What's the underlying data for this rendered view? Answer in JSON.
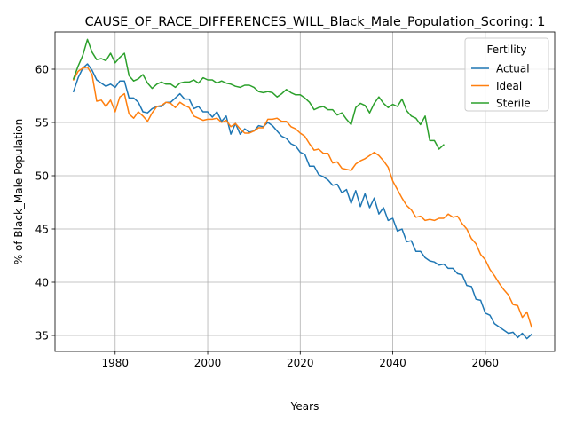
{
  "chart_data": {
    "type": "line",
    "title": "CAUSE_OF_RACE_DIFFERENCES_WILL_Black_Male_Population_Scoring: 1",
    "xlabel": "Years",
    "ylabel": "% of Black_Male Population",
    "xlim": [
      1967,
      2075
    ],
    "ylim": [
      33.5,
      63.5
    ],
    "xticks": [
      1980,
      2000,
      2020,
      2040,
      2060
    ],
    "yticks": [
      35,
      40,
      45,
      50,
      55,
      60
    ],
    "grid": true,
    "legend": {
      "title": "Fertility",
      "placement": "top-right"
    },
    "series": [
      {
        "name": "Actual",
        "color": "#1f77b4",
        "x": [
          1971,
          1972,
          1973,
          1974,
          1975,
          1976,
          1977,
          1978,
          1979,
          1980,
          1981,
          1982,
          1983,
          1984,
          1985,
          1986,
          1987,
          1988,
          1989,
          1990,
          1991,
          1992,
          1993,
          1994,
          1995,
          1996,
          1997,
          1998,
          1999,
          2000,
          2001,
          2002,
          2003,
          2004,
          2005,
          2006,
          2007,
          2008,
          2009,
          2010,
          2011,
          2012,
          2013,
          2014,
          2015,
          2016,
          2017,
          2018,
          2019,
          2020,
          2021,
          2022,
          2023,
          2024,
          2025,
          2026,
          2027,
          2028,
          2029,
          2030,
          2031,
          2032,
          2033,
          2034,
          2035,
          2036,
          2037,
          2038,
          2039,
          2040,
          2041,
          2042,
          2043,
          2044,
          2045,
          2046,
          2047,
          2048,
          2049,
          2050,
          2051,
          2052,
          2053,
          2054,
          2055,
          2056,
          2057,
          2058,
          2059,
          2060,
          2061,
          2062,
          2063,
          2064,
          2065,
          2066,
          2067,
          2068,
          2069,
          2070
        ],
        "y": [
          57.9,
          59.2,
          60.1,
          60.5,
          59.9,
          59.0,
          58.7,
          58.4,
          58.6,
          58.3,
          58.9,
          58.9,
          57.3,
          57.3,
          56.9,
          56.0,
          55.9,
          56.3,
          56.5,
          56.5,
          56.9,
          56.9,
          57.3,
          57.7,
          57.2,
          57.2,
          56.3,
          56.5,
          56.0,
          56.0,
          55.5,
          56.0,
          55.1,
          55.6,
          53.9,
          54.9,
          53.9,
          54.4,
          54.1,
          54.2,
          54.7,
          54.6,
          55.0,
          54.7,
          54.2,
          53.7,
          53.5,
          53.0,
          52.8,
          52.2,
          52.0,
          50.9,
          50.9,
          50.1,
          49.9,
          49.6,
          49.1,
          49.2,
          48.4,
          48.7,
          47.4,
          48.6,
          47.1,
          48.3,
          47.0,
          47.9,
          46.4,
          47.0,
          45.8,
          46.0,
          44.8,
          45.0,
          43.8,
          43.9,
          42.9,
          42.9,
          42.3,
          42.0,
          41.9,
          41.6,
          41.7,
          41.3,
          41.3,
          40.8,
          40.7,
          39.7,
          39.6,
          38.4,
          38.3,
          37.1,
          36.9,
          36.1,
          35.8,
          35.5,
          35.2,
          35.3,
          34.8,
          35.2,
          34.7,
          35.1
        ]
      },
      {
        "name": "Ideal",
        "color": "#ff7f0e",
        "x": [
          1971,
          1972,
          1973,
          1974,
          1975,
          1976,
          1977,
          1978,
          1979,
          1980,
          1981,
          1982,
          1983,
          1984,
          1985,
          1986,
          1987,
          1988,
          1989,
          1990,
          1991,
          1992,
          1993,
          1994,
          1995,
          1996,
          1997,
          1998,
          1999,
          2000,
          2001,
          2002,
          2003,
          2004,
          2005,
          2006,
          2007,
          2008,
          2009,
          2010,
          2011,
          2012,
          2013,
          2014,
          2015,
          2016,
          2017,
          2018,
          2019,
          2020,
          2021,
          2022,
          2023,
          2024,
          2025,
          2026,
          2027,
          2028,
          2029,
          2030,
          2031,
          2032,
          2033,
          2034,
          2035,
          2036,
          2037,
          2038,
          2039,
          2040,
          2041,
          2042,
          2043,
          2044,
          2045,
          2046,
          2047,
          2048,
          2049,
          2050,
          2051,
          2052,
          2053,
          2054,
          2055,
          2056,
          2057,
          2058,
          2059,
          2060,
          2061,
          2062,
          2063,
          2064,
          2065,
          2066,
          2067,
          2068,
          2069,
          2070
        ],
        "y": [
          59.0,
          59.8,
          60.1,
          60.2,
          59.5,
          57.0,
          57.1,
          56.5,
          57.1,
          56.0,
          57.4,
          57.7,
          55.8,
          55.4,
          56.0,
          55.6,
          55.1,
          55.9,
          56.5,
          56.6,
          56.9,
          56.8,
          56.4,
          56.9,
          56.6,
          56.4,
          55.6,
          55.4,
          55.2,
          55.3,
          55.3,
          55.4,
          55.0,
          55.2,
          54.6,
          54.9,
          54.4,
          54.0,
          54.0,
          54.2,
          54.5,
          54.5,
          55.3,
          55.3,
          55.4,
          55.1,
          55.1,
          54.6,
          54.4,
          54.0,
          53.7,
          53.0,
          52.4,
          52.5,
          52.1,
          52.1,
          51.2,
          51.3,
          50.7,
          50.6,
          50.5,
          51.1,
          51.4,
          51.6,
          51.9,
          52.2,
          51.9,
          51.4,
          50.8,
          49.5,
          48.7,
          47.9,
          47.2,
          46.8,
          46.1,
          46.2,
          45.8,
          45.9,
          45.8,
          46.0,
          46.0,
          46.4,
          46.1,
          46.2,
          45.5,
          45.0,
          44.1,
          43.6,
          42.6,
          42.1,
          41.2,
          40.6,
          39.9,
          39.3,
          38.8,
          37.9,
          37.8,
          36.7,
          37.2,
          35.8
        ]
      },
      {
        "name": "Sterile",
        "color": "#2ca02c",
        "x": [
          1971,
          1972,
          1973,
          1974,
          1975,
          1976,
          1977,
          1978,
          1979,
          1980,
          1981,
          1982,
          1983,
          1984,
          1985,
          1986,
          1987,
          1988,
          1989,
          1990,
          1991,
          1992,
          1993,
          1994,
          1995,
          1996,
          1997,
          1998,
          1999,
          2000,
          2001,
          2002,
          2003,
          2004,
          2005,
          2006,
          2007,
          2008,
          2009,
          2010,
          2011,
          2012,
          2013,
          2014,
          2015,
          2016,
          2017,
          2018,
          2019,
          2020,
          2021,
          2022,
          2023,
          2024,
          2025,
          2026,
          2027,
          2028,
          2029,
          2030,
          2031,
          2032,
          2033,
          2034,
          2035,
          2036,
          2037,
          2038,
          2039,
          2040,
          2041,
          2042,
          2043,
          2044,
          2045,
          2046,
          2047,
          2048,
          2049,
          2050,
          2051
        ],
        "y": [
          59.1,
          60.3,
          61.3,
          62.8,
          61.6,
          60.9,
          61.0,
          60.8,
          61.5,
          60.6,
          61.1,
          61.5,
          59.4,
          58.9,
          59.1,
          59.5,
          58.7,
          58.2,
          58.6,
          58.8,
          58.6,
          58.6,
          58.3,
          58.7,
          58.8,
          58.8,
          59.0,
          58.7,
          59.2,
          59.0,
          59.0,
          58.7,
          58.9,
          58.7,
          58.6,
          58.4,
          58.3,
          58.5,
          58.5,
          58.3,
          57.9,
          57.8,
          57.9,
          57.8,
          57.4,
          57.7,
          58.1,
          57.8,
          57.6,
          57.6,
          57.3,
          56.9,
          56.2,
          56.4,
          56.5,
          56.2,
          56.2,
          55.7,
          55.9,
          55.3,
          54.8,
          56.4,
          56.8,
          56.6,
          55.9,
          56.8,
          57.4,
          56.8,
          56.4,
          56.7,
          56.5,
          57.2,
          56.1,
          55.6,
          55.4,
          54.8,
          55.6,
          53.3,
          53.3,
          52.5,
          52.9
        ]
      }
    ]
  }
}
